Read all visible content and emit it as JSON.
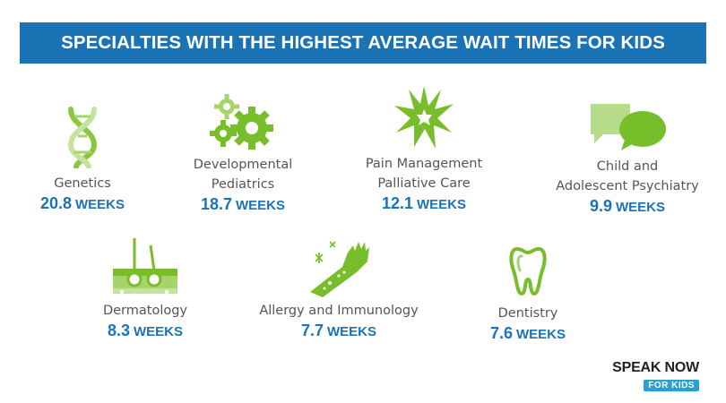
{
  "header": {
    "title": "SPECIALTIES WITH THE HIGHEST AVERAGE WAIT TIMES FOR KIDS"
  },
  "colors": {
    "banner": "#1a73b5",
    "accent_green": "#78be2a",
    "value_blue": "#1a73b5"
  },
  "items": [
    {
      "label": "Genetics",
      "value": "20.8",
      "unit": "WEEKS",
      "icon": "dna-icon"
    },
    {
      "label_line1": "Developmental",
      "label_line2": "Pediatrics",
      "value": "18.7",
      "unit": "WEEKS",
      "icon": "gears-icon"
    },
    {
      "label_line1": "Pain Management",
      "label_line2": "Palliative Care",
      "value": "12.1",
      "unit": "WEEKS",
      "icon": "burst-icon"
    },
    {
      "label_line1": "Child and",
      "label_line2": "Adolescent Psychiatry",
      "value": "9.9",
      "unit": "WEEKS",
      "icon": "speech-bubbles-icon"
    },
    {
      "label": "Dermatology",
      "value": "8.3",
      "unit": "WEEKS",
      "icon": "skin-hair-icon"
    },
    {
      "label": "Allergy and Immunology",
      "value": "7.7",
      "unit": "WEEKS",
      "icon": "allergic-arm-icon"
    },
    {
      "label": "Dentistry",
      "value": "7.6",
      "unit": "WEEKS",
      "icon": "tooth-icon"
    }
  ],
  "logo": {
    "line1": "SPEAK NOW",
    "line2": "FOR KIDS"
  }
}
